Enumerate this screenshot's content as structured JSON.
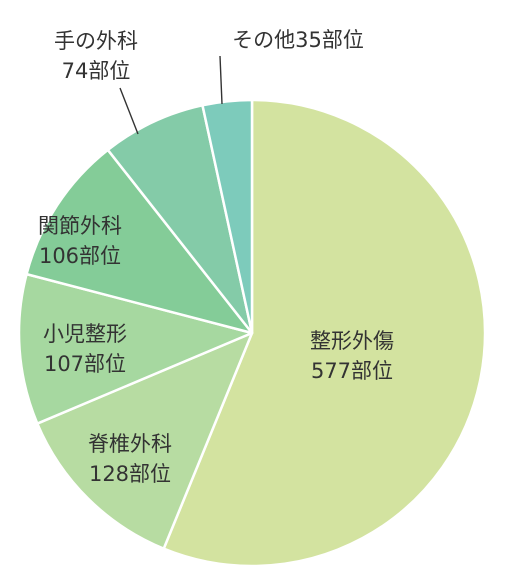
{
  "chart_data": {
    "type": "pie",
    "start_angle": "12 o'clock",
    "direction": "clockwise",
    "slices": [
      {
        "name": "整形外傷",
        "value": 577,
        "value_label": "577部位",
        "color": "#d3e3a0"
      },
      {
        "name": "脊椎外科",
        "value": 128,
        "value_label": "128部位",
        "color": "#b7dca2"
      },
      {
        "name": "小児整形",
        "value": 107,
        "value_label": "107部位",
        "color": "#a6d8a0"
      },
      {
        "name": "関節外科",
        "value": 106,
        "value_label": "106部位",
        "color": "#84cc98"
      },
      {
        "name": "手の外科",
        "value": 74,
        "value_label": "74部位",
        "color": "#84cba8"
      },
      {
        "name": "その他",
        "value": 35,
        "value_label": "35部位",
        "color": "#7dcbbb"
      }
    ]
  }
}
